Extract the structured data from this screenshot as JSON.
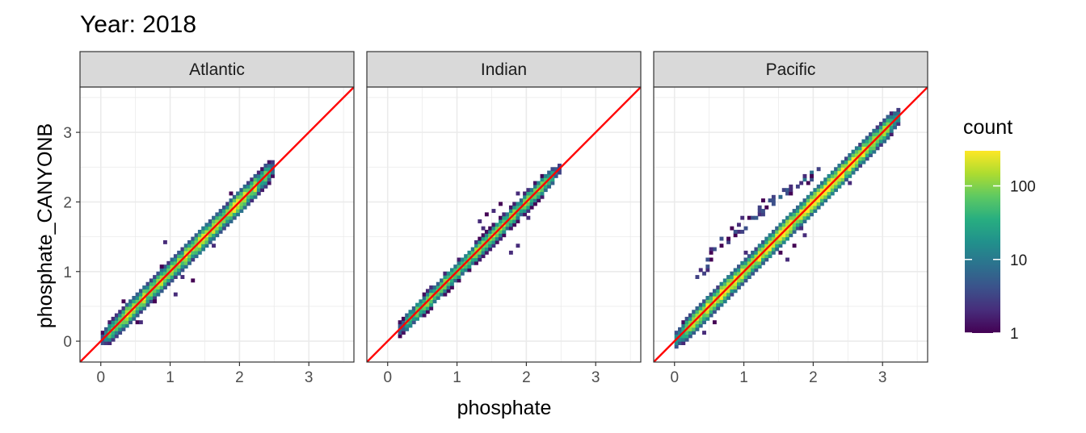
{
  "chart_data": {
    "type": "heatmap",
    "title": "Year: 2018",
    "xlabel": "phosphate",
    "ylabel": "phosphate_CANYONB",
    "xlim": [
      -0.3,
      3.65
    ],
    "ylim": [
      -0.3,
      3.65
    ],
    "x_ticks": [
      0,
      1,
      2,
      3
    ],
    "y_ticks": [
      0,
      1,
      2,
      3
    ],
    "grid": true,
    "reference_line": {
      "slope": 1,
      "intercept": 0,
      "color": "#ff0000"
    },
    "legend": {
      "title": "count",
      "position": "right",
      "scale": "log10",
      "range": [
        1,
        300
      ],
      "breaks": [
        1,
        10,
        100
      ],
      "break_labels": [
        "1",
        "10",
        "100"
      ],
      "colormap": "viridis"
    },
    "panels": [
      {
        "name": "Atlantic",
        "range": [
          0.02,
          2.5
        ],
        "band_count": 300,
        "spread": 0.08,
        "outliers": [
          [
            0.95,
            1.45
          ],
          [
            1.3,
            0.85
          ],
          [
            1.2,
            0.95
          ],
          [
            0.5,
            0.3
          ],
          [
            0.75,
            0.55
          ],
          [
            0.85,
            1.05
          ],
          [
            1.6,
            1.35
          ],
          [
            1.9,
            2.1
          ],
          [
            2.15,
            1.95
          ],
          [
            0.35,
            0.55
          ],
          [
            0.55,
            0.25
          ],
          [
            1.05,
            0.7
          ]
        ]
      },
      {
        "name": "Indian",
        "range": [
          0.15,
          2.45
        ],
        "band_count": 180,
        "spread": 0.07,
        "outliers": [
          [
            1.45,
            1.8
          ],
          [
            1.55,
            1.55
          ],
          [
            1.65,
            1.95
          ],
          [
            1.85,
            1.4
          ],
          [
            1.75,
            1.25
          ],
          [
            1.35,
            1.65
          ],
          [
            2.3,
            2.2
          ],
          [
            1.9,
            2.1
          ],
          [
            1.6,
            1.7
          ],
          [
            2.05,
            1.75
          ],
          [
            1.5,
            1.9
          ],
          [
            1.3,
            1.7
          ]
        ]
      },
      {
        "name": "Pacific",
        "range": [
          0.0,
          3.2
        ],
        "band_count": 420,
        "spread": 0.08,
        "arm": [
          [
            0.35,
            0.9
          ],
          [
            0.6,
            1.3
          ],
          [
            0.9,
            1.6
          ],
          [
            1.2,
            1.85
          ],
          [
            1.4,
            2.0
          ],
          [
            1.6,
            2.15
          ],
          [
            1.9,
            2.3
          ],
          [
            2.0,
            2.4
          ]
        ],
        "outliers": [
          [
            1.2,
            1.0
          ],
          [
            1.5,
            1.25
          ],
          [
            1.7,
            1.4
          ],
          [
            1.8,
            1.6
          ],
          [
            2.05,
            1.85
          ],
          [
            2.3,
            2.1
          ],
          [
            2.5,
            2.3
          ],
          [
            0.6,
            0.3
          ],
          [
            0.4,
            0.1
          ],
          [
            0.2,
            0.3
          ],
          [
            1.0,
            1.25
          ],
          [
            0.95,
            0.85
          ],
          [
            1.6,
            1.2
          ],
          [
            1.85,
            1.5
          ],
          [
            0.5,
            0.5
          ],
          [
            2.15,
            2.2
          ]
        ]
      }
    ]
  }
}
